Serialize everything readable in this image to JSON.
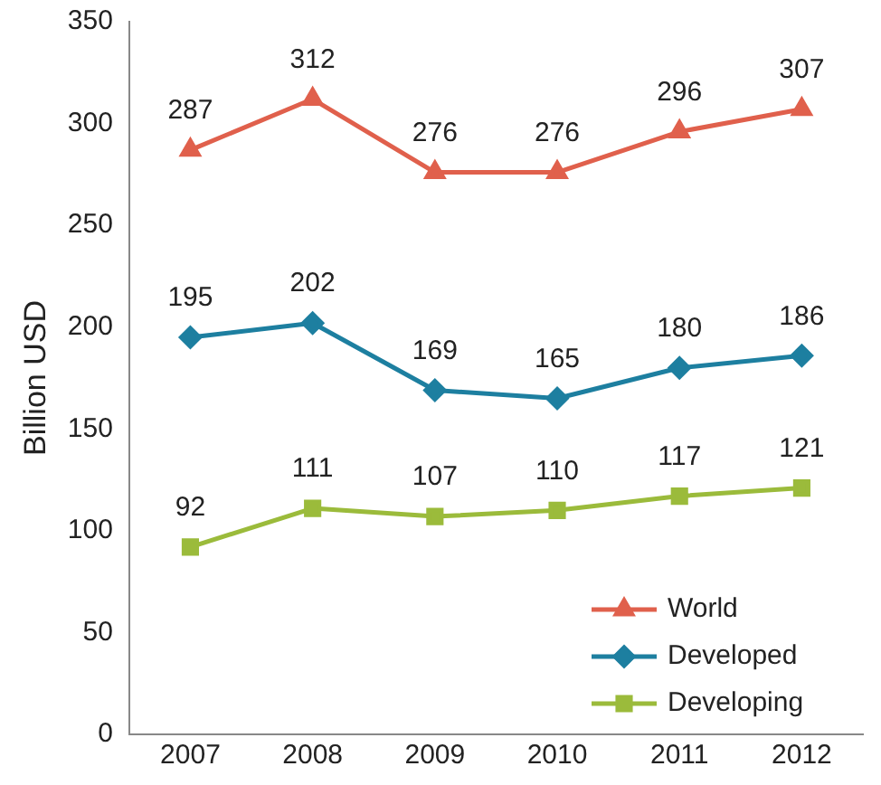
{
  "chart_data": {
    "type": "line",
    "ylabel": "Billion USD",
    "categories": [
      "2007",
      "2008",
      "2009",
      "2010",
      "2011",
      "2012"
    ],
    "series": [
      {
        "name": "World",
        "color": "#e0604c",
        "marker": "triangle",
        "values": [
          287,
          312,
          276,
          276,
          296,
          307
        ]
      },
      {
        "name": "Developed",
        "color": "#1d7fa0",
        "marker": "diamond",
        "values": [
          195,
          202,
          169,
          165,
          180,
          186
        ]
      },
      {
        "name": "Developing",
        "color": "#9bbb3b",
        "marker": "square",
        "values": [
          92,
          111,
          107,
          110,
          117,
          121
        ]
      }
    ],
    "ylim": [
      0,
      350
    ],
    "yticks": [
      0,
      50,
      100,
      150,
      200,
      250,
      300,
      350
    ],
    "grid": false,
    "legend": "bottom right",
    "data_labels": true,
    "line_style": "solid"
  }
}
